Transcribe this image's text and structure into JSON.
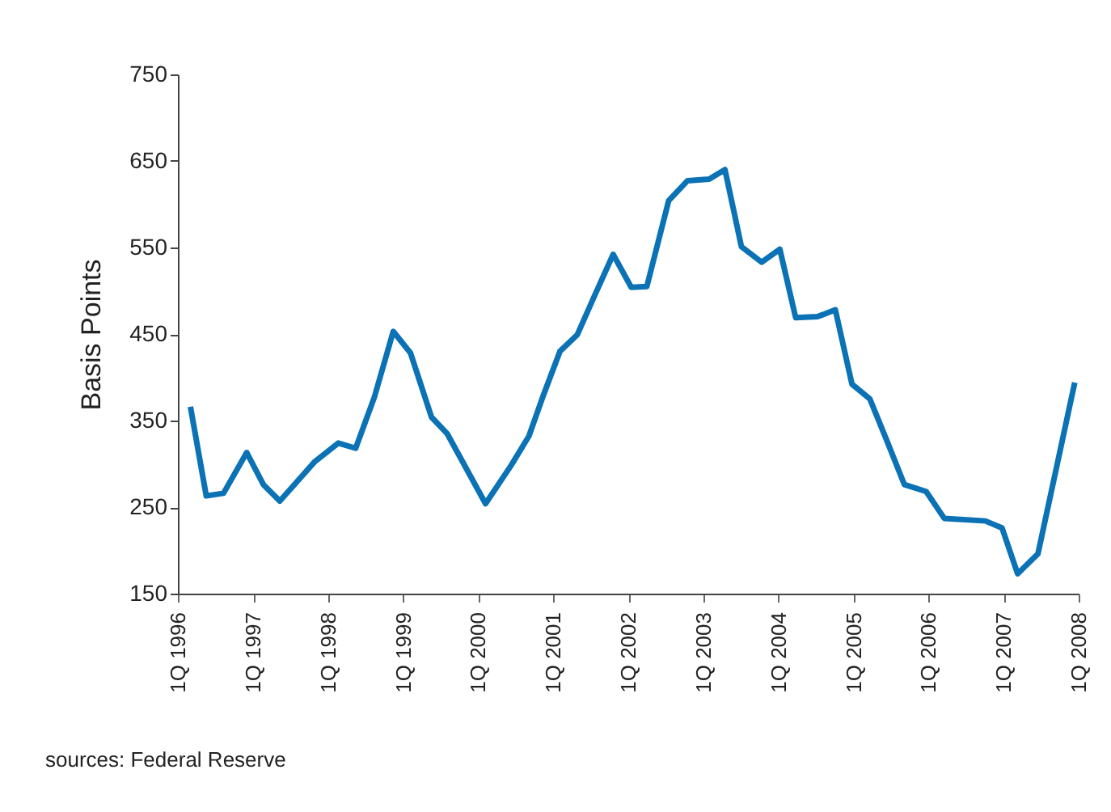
{
  "chart_data": {
    "type": "line",
    "ylabel": "Basis Points",
    "annotations": [
      "sources: Federal Reserve"
    ],
    "x": [
      "1996-03-02",
      "1996-05-18",
      "1996-08-10",
      "1996-12-01",
      "1997-02-20",
      "1997-05-11",
      "1997-10-26",
      "1998-02-20",
      "1998-05-15",
      "1998-08-14",
      "1998-11-14",
      "1999-02-06",
      "1999-05-19",
      "1999-08-03",
      "2000-02-06",
      "2000-06-09",
      "2000-09-04",
      "2000-11-13",
      "2001-02-02",
      "2001-04-27",
      "2001-07-20",
      "2001-10-19",
      "2002-01-15",
      "2002-04-01",
      "2002-07-16",
      "2002-10-15",
      "2003-01-29",
      "2003-04-16",
      "2003-07-05",
      "2003-10-12",
      "2004-01-08",
      "2004-03-25",
      "2004-07-09",
      "2004-10-04",
      "2004-12-24",
      "2005-03-21",
      "2005-06-13",
      "2005-09-05",
      "2005-12-20",
      "2006-03-18",
      "2006-10-04",
      "2006-12-24",
      "2007-03-10",
      "2007-06-17",
      "2007-12-13"
    ],
    "series": [
      {
        "color": "#0a72b5",
        "values": [
          366,
          263,
          266,
          313,
          276,
          257,
          302,
          324,
          318,
          377,
          453,
          428,
          354,
          335,
          254,
          298,
          332,
          379,
          430,
          449,
          494,
          542,
          504,
          505,
          604,
          627,
          629,
          640,
          551,
          533,
          548,
          469,
          470,
          478,
          392,
          375,
          326,
          276,
          268,
          237,
          234,
          226,
          173,
          196,
          394
        ]
      }
    ],
    "xlim": [
      "1996-01-01",
      "2008-01-01"
    ],
    "xticks": [
      {
        "value": "1996-01-01",
        "label": "1Q 1996"
      },
      {
        "value": "1997-01-01",
        "label": "1Q 1997"
      },
      {
        "value": "1998-01-01",
        "label": "1Q 1998"
      },
      {
        "value": "1999-01-01",
        "label": "1Q 1999"
      },
      {
        "value": "2000-01-01",
        "label": "1Q 2000"
      },
      {
        "value": "2001-01-01",
        "label": "1Q 2001"
      },
      {
        "value": "2002-01-01",
        "label": "1Q 2002"
      },
      {
        "value": "2003-01-01",
        "label": "1Q 2003"
      },
      {
        "value": "2004-01-01",
        "label": "1Q 2004"
      },
      {
        "value": "2005-01-01",
        "label": "1Q 2005"
      },
      {
        "value": "2006-01-01",
        "label": "1Q 2006"
      },
      {
        "value": "2007-01-01",
        "label": "1Q 2007"
      },
      {
        "value": "2008-01-01",
        "label": "1Q 2008"
      }
    ],
    "ylim": [
      150,
      750
    ],
    "yticks": [
      150,
      250,
      350,
      450,
      550,
      650,
      750
    ],
    "grid": false,
    "line_style": "solid",
    "marker": "none"
  }
}
